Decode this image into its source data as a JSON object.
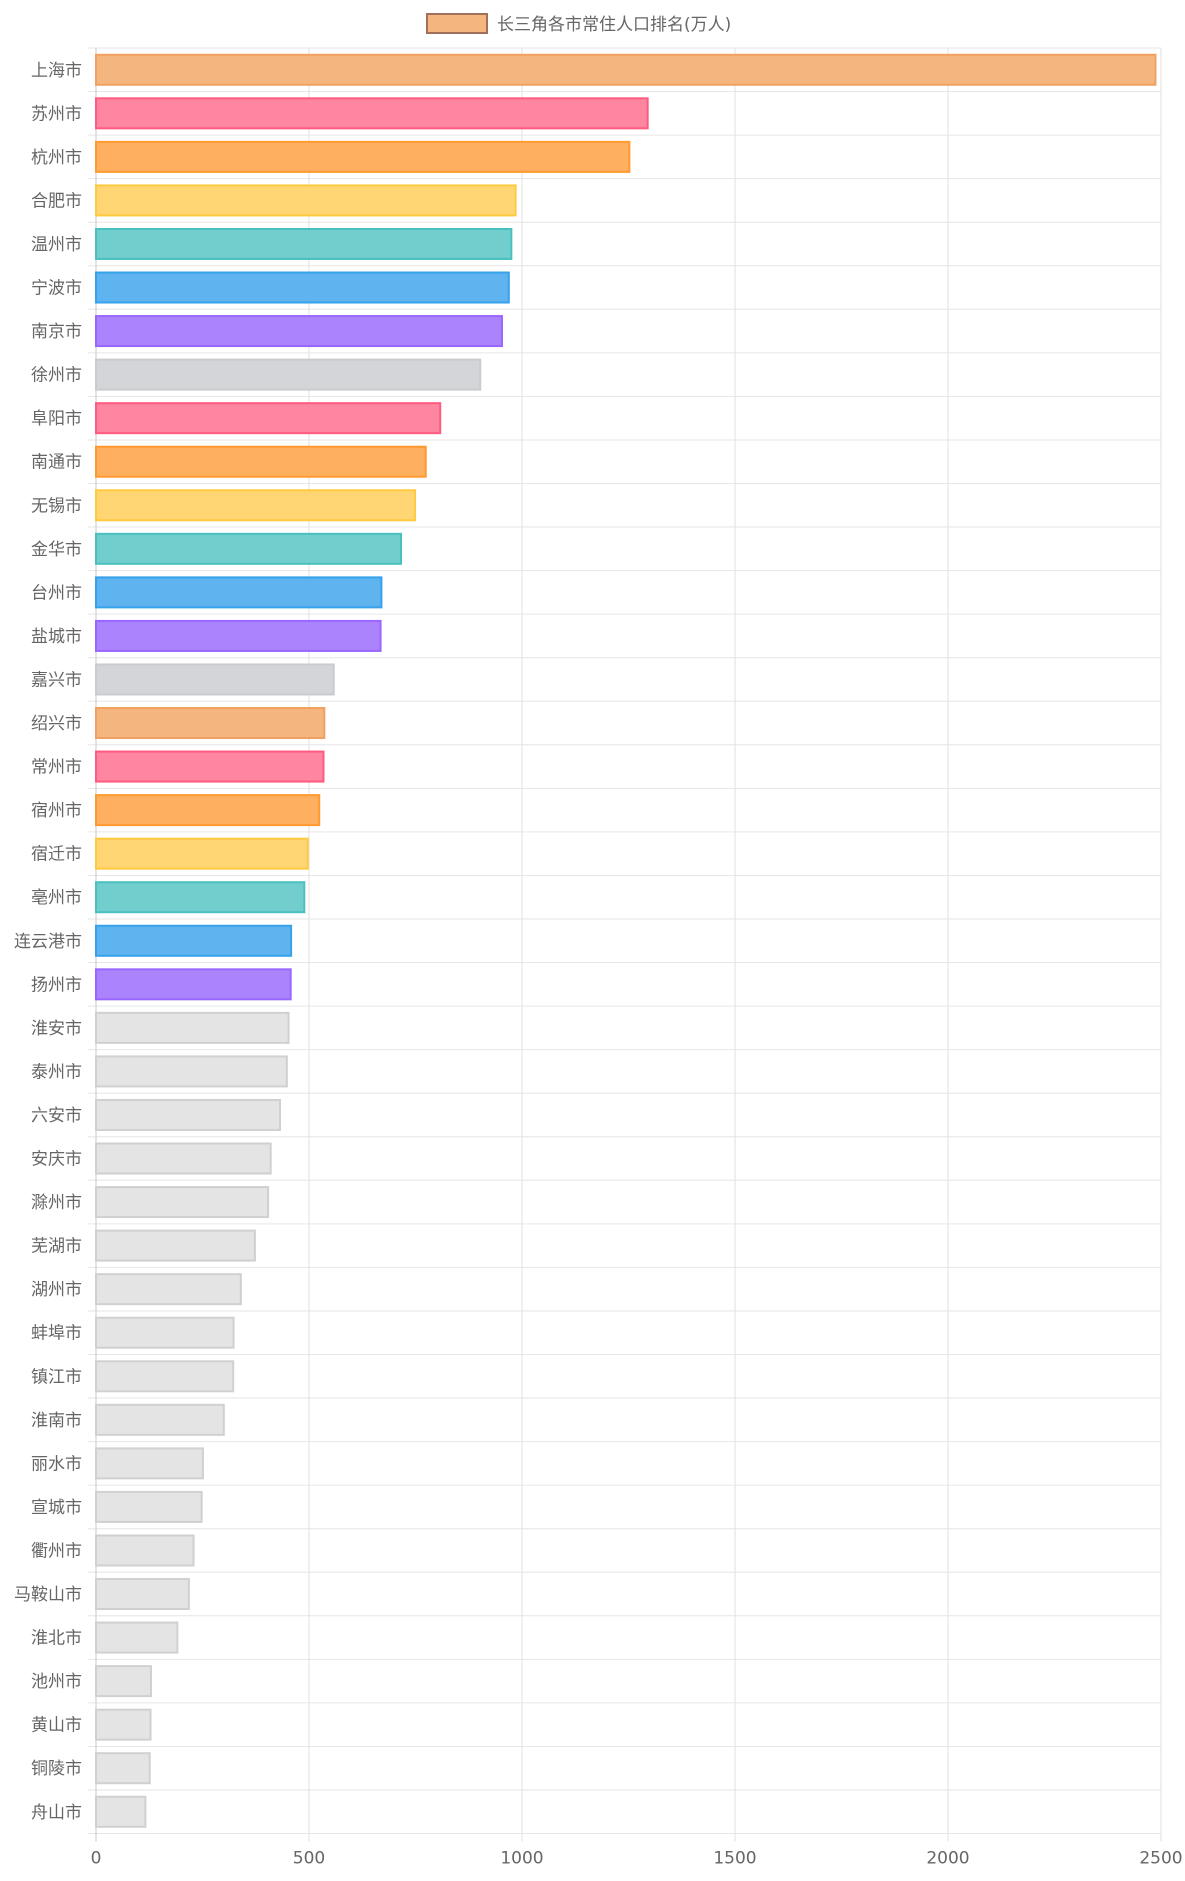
{
  "chart_data": {
    "type": "bar",
    "orientation": "horizontal",
    "legend": {
      "position": "top",
      "label": "长三角各市常住人口排名(万人)",
      "swatch_color": "#f5b57e"
    },
    "xlim": [
      0,
      2500
    ],
    "xticks": [
      0,
      500,
      1000,
      1500,
      2000,
      2500
    ],
    "grid": true,
    "categories": [
      "上海市",
      "苏州市",
      "杭州市",
      "合肥市",
      "温州市",
      "宁波市",
      "南京市",
      "徐州市",
      "阜阳市",
      "南通市",
      "无锡市",
      "金华市",
      "台州市",
      "盐城市",
      "嘉兴市",
      "绍兴市",
      "常州市",
      "宿州市",
      "宿迁市",
      "亳州市",
      "连云港市",
      "扬州市",
      "淮安市",
      "泰州市",
      "六安市",
      "安庆市",
      "滁州市",
      "芜湖市",
      "湖州市",
      "蚌埠市",
      "镇江市",
      "淮南市",
      "丽水市",
      "宣城市",
      "衢州市",
      "马鞍山市",
      "淮北市",
      "池州市",
      "黄山市",
      "铜陵市",
      "舟山市"
    ],
    "values": [
      2487,
      1295,
      1252,
      985,
      975,
      969,
      953,
      902,
      808,
      774,
      749,
      716,
      670,
      668,
      558,
      536,
      534,
      524,
      497,
      489,
      458,
      457,
      452,
      448,
      432,
      410,
      404,
      373,
      340,
      323,
      322,
      300,
      251,
      248,
      229,
      218,
      191,
      129,
      128,
      126,
      116
    ],
    "colors": [
      "#f5b57e",
      "#ff86a1",
      "#ffaf60",
      "#ffd673",
      "#72cdcd",
      "#5fb3ef",
      "#ab83fc",
      "#d4d5d9",
      "#ff86a1",
      "#ffaf60",
      "#ffd673",
      "#72cdcd",
      "#5fb3ef",
      "#ab83fc",
      "#d4d5d9",
      "#f5b57e",
      "#ff86a1",
      "#ffaf60",
      "#ffd673",
      "#72cdcd",
      "#5fb3ef",
      "#ab83fc",
      "#e4e4e4",
      "#e4e4e4",
      "#e4e4e4",
      "#e4e4e4",
      "#e4e4e4",
      "#e4e4e4",
      "#e4e4e4",
      "#e4e4e4",
      "#e4e4e4",
      "#e4e4e4",
      "#e4e4e4",
      "#e4e4e4",
      "#e4e4e4",
      "#e4e4e4",
      "#e4e4e4",
      "#e4e4e4",
      "#e4e4e4",
      "#e4e4e4",
      "#e4e4e4"
    ],
    "borders": [
      "#f0a060",
      "#ff5a80",
      "#ff9a30",
      "#ffc940",
      "#4bc0c0",
      "#36a2eb",
      "#9966ff",
      "#c9cbcf",
      "#ff5a80",
      "#ff9a30",
      "#ffc940",
      "#4bc0c0",
      "#36a2eb",
      "#9966ff",
      "#c9cbcf",
      "#f0a060",
      "#ff5a80",
      "#ff9a30",
      "#ffc940",
      "#4bc0c0",
      "#36a2eb",
      "#9966ff",
      "#d0d0d0",
      "#d0d0d0",
      "#d0d0d0",
      "#d0d0d0",
      "#d0d0d0",
      "#d0d0d0",
      "#d0d0d0",
      "#d0d0d0",
      "#d0d0d0",
      "#d0d0d0",
      "#d0d0d0",
      "#d0d0d0",
      "#d0d0d0",
      "#d0d0d0",
      "#d0d0d0",
      "#d0d0d0",
      "#d0d0d0",
      "#d0d0d0",
      "#d0d0d0"
    ]
  }
}
